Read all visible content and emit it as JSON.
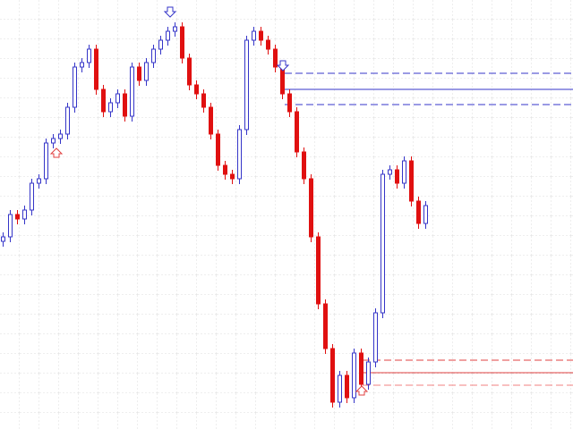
{
  "chart_data": {
    "type": "candlestick",
    "open": [
      210,
      215,
      240,
      235,
      245,
      275,
      280,
      320,
      325,
      330,
      360,
      405,
      410,
      425,
      380,
      355,
      365,
      375,
      350,
      405,
      390,
      410,
      425,
      435,
      445,
      450,
      415,
      385,
      375,
      360,
      330,
      295,
      285,
      280,
      335,
      435,
      445,
      435,
      425,
      405,
      375,
      355,
      310,
      280,
      215,
      140,
      90,
      30,
      60,
      35,
      85,
      50,
      75,
      130,
      285,
      290,
      275,
      300,
      255,
      230
    ],
    "high": [
      220,
      245,
      245,
      250,
      280,
      285,
      325,
      330,
      335,
      365,
      410,
      415,
      430,
      430,
      385,
      370,
      380,
      380,
      410,
      410,
      415,
      430,
      440,
      450,
      455,
      455,
      420,
      390,
      380,
      365,
      335,
      300,
      290,
      340,
      440,
      450,
      450,
      440,
      430,
      410,
      380,
      360,
      315,
      285,
      220,
      145,
      95,
      65,
      65,
      90,
      90,
      80,
      135,
      290,
      295,
      295,
      305,
      305,
      260,
      255
    ],
    "low": [
      204,
      209,
      229,
      229,
      239,
      269,
      274,
      314,
      319,
      324,
      354,
      399,
      404,
      374,
      349,
      349,
      359,
      344,
      344,
      384,
      384,
      404,
      419,
      429,
      439,
      409,
      379,
      369,
      354,
      324,
      289,
      279,
      274,
      274,
      329,
      429,
      429,
      419,
      399,
      369,
      349,
      304,
      274,
      209,
      134,
      84,
      24,
      24,
      29,
      29,
      44,
      44,
      69,
      124,
      279,
      269,
      269,
      249,
      224,
      224
    ],
    "close": [
      215,
      240,
      235,
      245,
      275,
      280,
      320,
      325,
      330,
      360,
      405,
      410,
      425,
      380,
      355,
      365,
      375,
      350,
      405,
      390,
      410,
      425,
      435,
      445,
      450,
      415,
      385,
      375,
      360,
      330,
      295,
      285,
      280,
      335,
      435,
      445,
      435,
      425,
      405,
      375,
      355,
      310,
      280,
      215,
      140,
      90,
      30,
      60,
      35,
      85,
      50,
      75,
      130,
      285,
      290,
      275,
      300,
      255,
      230,
      250
    ],
    "up_color": "#3535c8",
    "down_color": "#e01010",
    "ylim": [
      0,
      480
    ],
    "levels": [
      {
        "value": 398,
        "color": "#3535c8",
        "dashed": true
      },
      {
        "value": 380,
        "color": "#3535c8",
        "dashed": false
      },
      {
        "value": 363,
        "color": "#3535c8",
        "dashed": true
      },
      {
        "value": 77,
        "color": "#e04040",
        "dashed": true
      },
      {
        "value": 63,
        "color": "#e04040",
        "dashed": false
      },
      {
        "value": 49,
        "color": "#f08080",
        "dashed": true
      }
    ]
  }
}
